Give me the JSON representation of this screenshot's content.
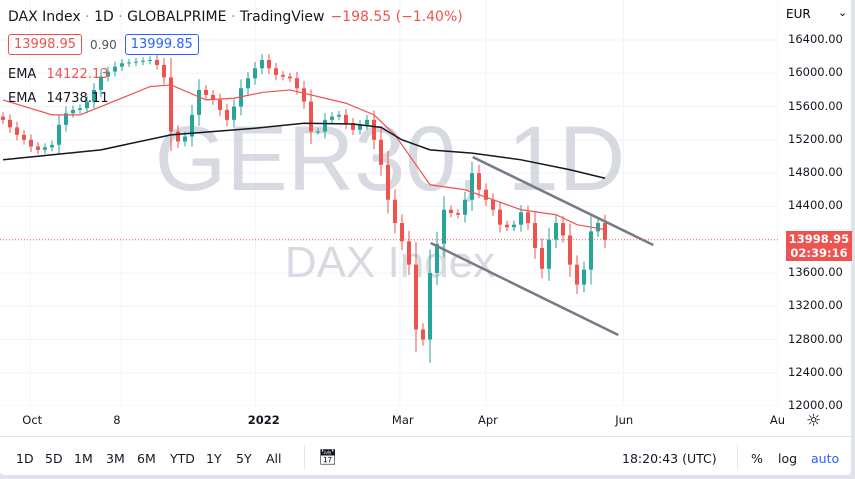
{
  "header": {
    "symbol": "DAX Index",
    "sep": "·",
    "interval": "1D",
    "broker": "GLOBALPRIME",
    "platform": "TradingView",
    "change": "−198.55 (−1.40%)"
  },
  "quote": {
    "bid": "13998.95",
    "spread": "0.90",
    "ask": "13999.85"
  },
  "indicators": [
    {
      "label": "EMA",
      "value": "14122.13",
      "color": "#ef5350"
    },
    {
      "label": "EMA",
      "value": "14738.11",
      "color": "#131722"
    }
  ],
  "watermark": {
    "line1": "GER30, 1D",
    "line2": "DAX Index"
  },
  "price_axis": {
    "currency": "EUR",
    "last_price": "13998.95",
    "countdown": "02:39:16"
  },
  "toolbar": {
    "ranges": [
      "1D",
      "5D",
      "1M",
      "3M",
      "6M",
      "YTD",
      "1Y",
      "5Y",
      "All"
    ],
    "time": "18:20:43 (UTC)",
    "percent": "%",
    "log": "log",
    "auto": "auto"
  },
  "colors": {
    "up": "#26a69a",
    "down": "#ef5350",
    "ema_fast": "#ef5350",
    "ema_slow": "#131722",
    "trendline": "#787b86",
    "accent": "#2962ff"
  },
  "chart_data": {
    "type": "candlestick",
    "ylim": [
      12000,
      16500
    ],
    "yticks": [
      16400,
      16000,
      15600,
      15200,
      14800,
      14400,
      13600,
      13200,
      12800,
      12400,
      12000
    ],
    "ytick_labels": [
      "16400.00",
      "16000.00",
      "15600.00",
      "15200.00",
      "14800.00",
      "14400.00",
      "13600.00",
      "13200.00",
      "12800.00",
      "12400.00",
      "12000.00"
    ],
    "xticks": [
      {
        "label": "Oct",
        "index": 3.9
      },
      {
        "label": "8",
        "index": 16.9
      },
      {
        "label": "2022",
        "index": 36.1
      },
      {
        "label": "Mar",
        "index": 56.7
      },
      {
        "label": "Apr",
        "index": 69
      },
      {
        "label": "Jun",
        "index": 88.6
      },
      {
        "label": "Au",
        "index": 110.7
      }
    ],
    "closes": [
      15440,
      15350,
      15260,
      15200,
      15120,
      15080,
      15110,
      15140,
      15380,
      15520,
      15560,
      15580,
      15660,
      15800,
      15960,
      16020,
      16080,
      16120,
      16130,
      16140,
      16150,
      16160,
      16100,
      15950,
      15300,
      15180,
      15240,
      15500,
      15800,
      15740,
      15680,
      15560,
      15440,
      15600,
      15820,
      15940,
      16060,
      16160,
      16060,
      15980,
      15960,
      15940,
      15820,
      15660,
      15300,
      15300,
      15440,
      15480,
      15500,
      15400,
      15320,
      15380,
      15440,
      15200,
      14900,
      14480,
      14200,
      13980,
      13700,
      12920,
      12800,
      13600,
      13950,
      14360,
      14320,
      14300,
      14480,
      14800,
      14600,
      14480,
      14360,
      14180,
      14150,
      14180,
      14330,
      14200,
      13900,
      13650,
      14000,
      14200,
      14050,
      13700,
      13460,
      13640,
      14100,
      14200,
      13999
    ],
    "ema_fast": [
      [
        0,
        15680
      ],
      [
        7,
        15500
      ],
      [
        11,
        15500
      ],
      [
        14,
        15600
      ],
      [
        21,
        15840
      ],
      [
        24,
        15860
      ],
      [
        29,
        15680
      ],
      [
        33,
        15700
      ],
      [
        37,
        15770
      ],
      [
        41,
        15800
      ],
      [
        46,
        15700
      ],
      [
        49,
        15640
      ],
      [
        53,
        15500
      ],
      [
        56,
        15260
      ],
      [
        59,
        14900
      ],
      [
        61,
        14660
      ],
      [
        66,
        14600
      ],
      [
        70,
        14480
      ],
      [
        74,
        14360
      ],
      [
        79,
        14300
      ],
      [
        82,
        14180
      ],
      [
        86,
        14122
      ]
    ],
    "ema_slow": [
      [
        0,
        14960
      ],
      [
        14,
        15080
      ],
      [
        24,
        15260
      ],
      [
        36,
        15340
      ],
      [
        43,
        15400
      ],
      [
        50,
        15390
      ],
      [
        54,
        15350
      ],
      [
        57,
        15200
      ],
      [
        61,
        15080
      ],
      [
        67,
        15040
      ],
      [
        74,
        14960
      ],
      [
        81,
        14840
      ],
      [
        86,
        14738
      ]
    ],
    "trendlines": [
      [
        [
          67.1,
          14994
        ],
        [
          92.9,
          13936
        ]
      ],
      [
        [
          61.1,
          13960
        ],
        [
          87.9,
          12854
        ]
      ]
    ],
    "last_line": 13998.95
  }
}
